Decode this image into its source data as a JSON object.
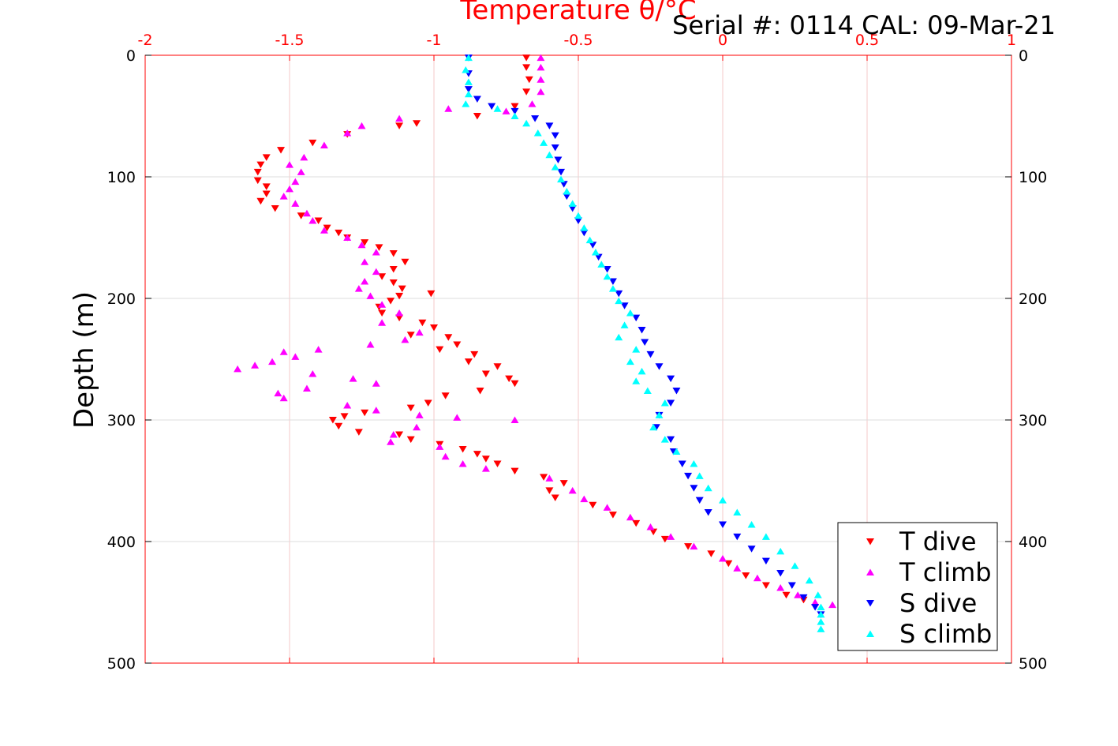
{
  "chart_data": {
    "type": "scatter",
    "title": "Serial #: 0114  CAL: 09-Mar-21",
    "xlabel": "Temperature θ/°C",
    "ylabel": "Depth (m)",
    "xlim": [
      -2,
      1
    ],
    "ylim": [
      0,
      500
    ],
    "y_reversed": true,
    "x_ticks": [
      "-2",
      "-1.5",
      "-1",
      "-0.5",
      "0",
      "0.5",
      "1"
    ],
    "y_ticks_left": [
      "0",
      "100",
      "200",
      "300",
      "400",
      "500"
    ],
    "y_ticks_right": [
      "0",
      "100",
      "200",
      "300",
      "400",
      "500"
    ],
    "grid": true,
    "legend_position": "bottom-right",
    "series": [
      {
        "name": "T dive",
        "color": "#ff0000",
        "marker": "triangle-down",
        "points": [
          [
            -0.68,
            2
          ],
          [
            -0.68,
            10
          ],
          [
            -0.67,
            20
          ],
          [
            -0.68,
            30
          ],
          [
            -0.72,
            42
          ],
          [
            -0.85,
            50
          ],
          [
            -1.06,
            56
          ],
          [
            -1.12,
            58
          ],
          [
            -1.3,
            65
          ],
          [
            -1.42,
            72
          ],
          [
            -1.53,
            78
          ],
          [
            -1.58,
            84
          ],
          [
            -1.6,
            90
          ],
          [
            -1.61,
            96
          ],
          [
            -1.61,
            103
          ],
          [
            -1.58,
            108
          ],
          [
            -1.58,
            114
          ],
          [
            -1.6,
            120
          ],
          [
            -1.55,
            126
          ],
          [
            -1.46,
            132
          ],
          [
            -1.4,
            136
          ],
          [
            -1.37,
            142
          ],
          [
            -1.33,
            146
          ],
          [
            -1.3,
            150
          ],
          [
            -1.24,
            154
          ],
          [
            -1.19,
            158
          ],
          [
            -1.14,
            163
          ],
          [
            -1.1,
            170
          ],
          [
            -1.14,
            176
          ],
          [
            -1.18,
            182
          ],
          [
            -1.14,
            187
          ],
          [
            -1.11,
            192
          ],
          [
            -1.01,
            196
          ],
          [
            -1.12,
            198
          ],
          [
            -1.15,
            202
          ],
          [
            -1.19,
            207
          ],
          [
            -1.18,
            212
          ],
          [
            -1.12,
            216
          ],
          [
            -1.04,
            220
          ],
          [
            -1.0,
            224
          ],
          [
            -1.08,
            230
          ],
          [
            -0.95,
            232
          ],
          [
            -0.92,
            238
          ],
          [
            -0.98,
            242
          ],
          [
            -0.86,
            246
          ],
          [
            -0.88,
            252
          ],
          [
            -0.78,
            256
          ],
          [
            -0.82,
            262
          ],
          [
            -0.74,
            266
          ],
          [
            -0.72,
            270
          ],
          [
            -0.84,
            276
          ],
          [
            -0.96,
            280
          ],
          [
            -1.02,
            286
          ],
          [
            -1.08,
            290
          ],
          [
            -1.24,
            294
          ],
          [
            -1.31,
            297
          ],
          [
            -1.35,
            300
          ],
          [
            -1.33,
            305
          ],
          [
            -1.26,
            310
          ],
          [
            -1.12,
            312
          ],
          [
            -1.08,
            316
          ],
          [
            -0.98,
            320
          ],
          [
            -0.9,
            324
          ],
          [
            -0.85,
            328
          ],
          [
            -0.82,
            332
          ],
          [
            -0.78,
            336
          ],
          [
            -0.72,
            342
          ],
          [
            -0.62,
            347
          ],
          [
            -0.55,
            352
          ],
          [
            -0.6,
            358
          ],
          [
            -0.58,
            364
          ],
          [
            -0.45,
            370
          ],
          [
            -0.38,
            378
          ],
          [
            -0.3,
            385
          ],
          [
            -0.24,
            392
          ],
          [
            -0.2,
            398
          ],
          [
            -0.12,
            404
          ],
          [
            -0.04,
            410
          ],
          [
            0.02,
            418
          ],
          [
            0.08,
            428
          ],
          [
            0.15,
            436
          ],
          [
            0.22,
            444
          ],
          [
            0.28,
            448
          ]
        ]
      },
      {
        "name": "T climb",
        "color": "#ff00ff",
        "marker": "triangle-up",
        "points": [
          [
            -0.63,
            2
          ],
          [
            -0.63,
            10
          ],
          [
            -0.63,
            20
          ],
          [
            -0.63,
            30
          ],
          [
            -0.66,
            40
          ],
          [
            -0.95,
            44
          ],
          [
            -0.75,
            46
          ],
          [
            -1.12,
            52
          ],
          [
            -1.25,
            58
          ],
          [
            -1.3,
            64
          ],
          [
            -1.38,
            74
          ],
          [
            -1.45,
            84
          ],
          [
            -1.5,
            90
          ],
          [
            -1.46,
            96
          ],
          [
            -1.48,
            104
          ],
          [
            -1.5,
            110
          ],
          [
            -1.52,
            116
          ],
          [
            -1.48,
            122
          ],
          [
            -1.44,
            130
          ],
          [
            -1.42,
            136
          ],
          [
            -1.38,
            144
          ],
          [
            -1.3,
            150
          ],
          [
            -1.25,
            156
          ],
          [
            -1.2,
            162
          ],
          [
            -1.24,
            170
          ],
          [
            -1.2,
            178
          ],
          [
            -1.24,
            186
          ],
          [
            -1.26,
            192
          ],
          [
            -1.22,
            198
          ],
          [
            -1.18,
            205
          ],
          [
            -1.12,
            212
          ],
          [
            -1.18,
            220
          ],
          [
            -1.05,
            228
          ],
          [
            -1.1,
            234
          ],
          [
            -1.22,
            238
          ],
          [
            -1.4,
            242
          ],
          [
            -1.52,
            244
          ],
          [
            -1.48,
            248
          ],
          [
            -1.56,
            252
          ],
          [
            -1.62,
            255
          ],
          [
            -1.68,
            258
          ],
          [
            -1.42,
            262
          ],
          [
            -1.28,
            266
          ],
          [
            -1.2,
            270
          ],
          [
            -1.44,
            274
          ],
          [
            -1.54,
            278
          ],
          [
            -1.52,
            282
          ],
          [
            -1.3,
            288
          ],
          [
            -1.2,
            292
          ],
          [
            -1.05,
            296
          ],
          [
            -0.92,
            298
          ],
          [
            -0.72,
            300
          ],
          [
            -1.06,
            306
          ],
          [
            -1.14,
            312
          ],
          [
            -1.15,
            318
          ],
          [
            -0.98,
            322
          ],
          [
            -0.96,
            330
          ],
          [
            -0.9,
            336
          ],
          [
            -0.82,
            340
          ],
          [
            -0.6,
            348
          ],
          [
            -0.52,
            358
          ],
          [
            -0.48,
            365
          ],
          [
            -0.4,
            372
          ],
          [
            -0.32,
            380
          ],
          [
            -0.25,
            388
          ],
          [
            -0.18,
            396
          ],
          [
            -0.1,
            404
          ],
          [
            0.0,
            414
          ],
          [
            0.05,
            422
          ],
          [
            0.12,
            430
          ],
          [
            0.2,
            438
          ],
          [
            0.26,
            444
          ],
          [
            0.32,
            450
          ],
          [
            0.38,
            452
          ]
        ]
      },
      {
        "name": "S dive",
        "color": "#0000ff",
        "marker": "triangle-down",
        "points": [
          [
            -0.88,
            2
          ],
          [
            -0.88,
            15
          ],
          [
            -0.88,
            28
          ],
          [
            -0.85,
            36
          ],
          [
            -0.8,
            42
          ],
          [
            -0.72,
            46
          ],
          [
            -0.65,
            52
          ],
          [
            -0.6,
            58
          ],
          [
            -0.58,
            66
          ],
          [
            -0.58,
            76
          ],
          [
            -0.57,
            86
          ],
          [
            -0.56,
            96
          ],
          [
            -0.55,
            106
          ],
          [
            -0.54,
            116
          ],
          [
            -0.52,
            126
          ],
          [
            -0.5,
            136
          ],
          [
            -0.48,
            146
          ],
          [
            -0.45,
            156
          ],
          [
            -0.43,
            166
          ],
          [
            -0.4,
            176
          ],
          [
            -0.38,
            186
          ],
          [
            -0.36,
            196
          ],
          [
            -0.34,
            206
          ],
          [
            -0.3,
            216
          ],
          [
            -0.28,
            226
          ],
          [
            -0.27,
            236
          ],
          [
            -0.25,
            246
          ],
          [
            -0.22,
            256
          ],
          [
            -0.18,
            266
          ],
          [
            -0.16,
            276
          ],
          [
            -0.18,
            286
          ],
          [
            -0.22,
            296
          ],
          [
            -0.23,
            306
          ],
          [
            -0.18,
            316
          ],
          [
            -0.17,
            326
          ],
          [
            -0.14,
            336
          ],
          [
            -0.12,
            346
          ],
          [
            -0.1,
            356
          ],
          [
            -0.08,
            366
          ],
          [
            -0.05,
            376
          ],
          [
            0.0,
            386
          ],
          [
            0.05,
            396
          ],
          [
            0.1,
            406
          ],
          [
            0.15,
            416
          ],
          [
            0.2,
            426
          ],
          [
            0.24,
            436
          ],
          [
            0.28,
            446
          ],
          [
            0.32,
            454
          ],
          [
            0.34,
            460
          ]
        ]
      },
      {
        "name": "S climb",
        "color": "#00ffff",
        "marker": "triangle-up",
        "points": [
          [
            -0.88,
            2
          ],
          [
            -0.89,
            12
          ],
          [
            -0.88,
            22
          ],
          [
            -0.88,
            32
          ],
          [
            -0.89,
            40
          ],
          [
            -0.78,
            44
          ],
          [
            -0.72,
            50
          ],
          [
            -0.68,
            56
          ],
          [
            -0.64,
            64
          ],
          [
            -0.62,
            72
          ],
          [
            -0.6,
            82
          ],
          [
            -0.58,
            92
          ],
          [
            -0.56,
            102
          ],
          [
            -0.54,
            112
          ],
          [
            -0.52,
            122
          ],
          [
            -0.5,
            132
          ],
          [
            -0.48,
            142
          ],
          [
            -0.46,
            152
          ],
          [
            -0.44,
            162
          ],
          [
            -0.42,
            172
          ],
          [
            -0.4,
            182
          ],
          [
            -0.38,
            192
          ],
          [
            -0.36,
            202
          ],
          [
            -0.32,
            212
          ],
          [
            -0.34,
            222
          ],
          [
            -0.36,
            232
          ],
          [
            -0.3,
            242
          ],
          [
            -0.32,
            252
          ],
          [
            -0.28,
            260
          ],
          [
            -0.3,
            268
          ],
          [
            -0.26,
            276
          ],
          [
            -0.2,
            286
          ],
          [
            -0.22,
            296
          ],
          [
            -0.24,
            306
          ],
          [
            -0.2,
            316
          ],
          [
            -0.16,
            326
          ],
          [
            -0.1,
            336
          ],
          [
            -0.08,
            346
          ],
          [
            -0.05,
            356
          ],
          [
            0.0,
            366
          ],
          [
            0.05,
            376
          ],
          [
            0.1,
            386
          ],
          [
            0.15,
            396
          ],
          [
            0.2,
            408
          ],
          [
            0.25,
            420
          ],
          [
            0.3,
            432
          ],
          [
            0.33,
            444
          ],
          [
            0.34,
            454
          ],
          [
            0.34,
            460
          ],
          [
            0.34,
            466
          ],
          [
            0.34,
            472
          ]
        ]
      }
    ]
  }
}
